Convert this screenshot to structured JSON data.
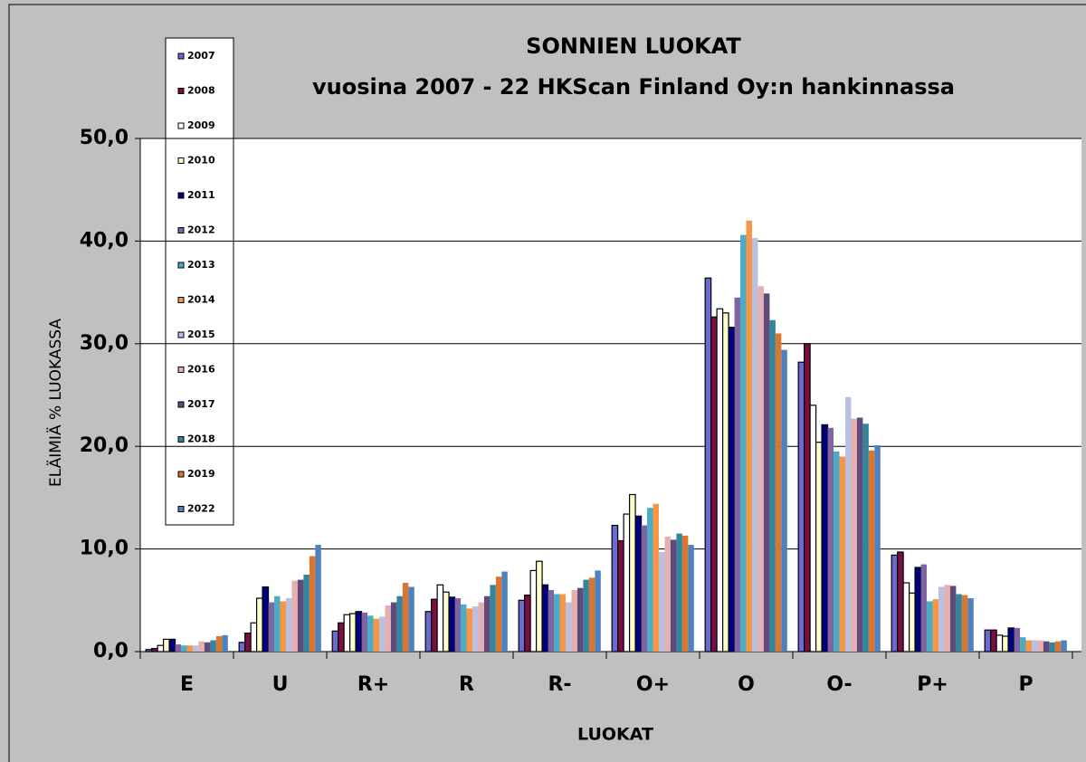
{
  "chart_data": {
    "type": "bar",
    "title": "SONNIEN LUOKAT",
    "subtitle": "vuosina 2007 - 22 HKScan Finland Oy:n hankinnassa",
    "ylabel": "ELÄIMIÄ % LUOKASSA",
    "xlabel": "LUOKAT",
    "categories": [
      "E",
      "U",
      "R+",
      "R",
      "R-",
      "O+",
      "O",
      "O-",
      "P+",
      "P"
    ],
    "ylim": [
      0,
      50
    ],
    "yticks": [
      {
        "value": 0,
        "label": "0,0"
      },
      {
        "value": 10,
        "label": "10,0"
      },
      {
        "value": 20,
        "label": "20,0"
      },
      {
        "value": 30,
        "label": "30,0"
      },
      {
        "value": 40,
        "label": "40,0"
      },
      {
        "value": 50,
        "label": "50,0"
      }
    ],
    "grid": true,
    "legend": "left",
    "series": [
      {
        "name": "2007",
        "color": "#6a6ad0",
        "values": [
          0.2,
          0.9,
          2.0,
          3.9,
          5.0,
          12.3,
          36.4,
          28.2,
          9.4,
          2.1
        ]
      },
      {
        "name": "2008",
        "color": "#7a1040",
        "values": [
          0.3,
          1.8,
          2.8,
          5.1,
          5.5,
          10.8,
          32.6,
          30.0,
          9.7,
          2.1
        ]
      },
      {
        "name": "2009",
        "color": "#ffffff",
        "values": [
          0.6,
          2.8,
          3.6,
          6.5,
          7.9,
          13.4,
          33.4,
          24.0,
          6.7,
          1.6
        ]
      },
      {
        "name": "2010",
        "color": "#ffffcc",
        "values": [
          1.2,
          5.2,
          3.7,
          5.8,
          8.8,
          15.3,
          33.0,
          20.4,
          5.7,
          1.5
        ]
      },
      {
        "name": "2011",
        "color": "#000080",
        "values": [
          1.2,
          6.3,
          3.9,
          5.3,
          6.5,
          13.2,
          31.6,
          22.1,
          8.2,
          2.3
        ]
      },
      {
        "name": "2012",
        "color": "#8064a2",
        "values": [
          0.7,
          4.8,
          3.8,
          5.2,
          6.0,
          12.3,
          34.5,
          21.8,
          8.5,
          2.3
        ]
      },
      {
        "name": "2013",
        "color": "#4bacc6",
        "values": [
          0.6,
          5.4,
          3.5,
          4.6,
          5.6,
          14.0,
          40.6,
          19.5,
          4.9,
          1.4
        ]
      },
      {
        "name": "2014",
        "color": "#f79646",
        "values": [
          0.6,
          4.9,
          3.2,
          4.2,
          5.6,
          14.4,
          42.0,
          19.0,
          5.1,
          1.1
        ]
      },
      {
        "name": "2015",
        "color": "#b9c0e0",
        "values": [
          0.6,
          5.2,
          3.4,
          4.4,
          4.8,
          9.7,
          40.3,
          24.8,
          6.3,
          1.1
        ]
      },
      {
        "name": "2016",
        "color": "#e6b0b0",
        "values": [
          1.0,
          6.9,
          4.5,
          4.8,
          6.0,
          11.2,
          35.6,
          22.7,
          6.5,
          1.1
        ]
      },
      {
        "name": "2017",
        "color": "#604a7b",
        "values": [
          0.9,
          7.0,
          4.8,
          5.4,
          6.2,
          10.9,
          34.9,
          22.8,
          6.4,
          1.0
        ]
      },
      {
        "name": "2018",
        "color": "#31859c",
        "values": [
          1.1,
          7.5,
          5.4,
          6.5,
          7.0,
          11.5,
          32.3,
          22.2,
          5.6,
          0.9
        ]
      },
      {
        "name": "2019",
        "color": "#d9762f",
        "values": [
          1.5,
          9.3,
          6.7,
          7.3,
          7.2,
          11.3,
          31.0,
          19.6,
          5.5,
          1.0
        ]
      },
      {
        "name": "2022",
        "color": "#4f81bd",
        "values": [
          1.6,
          10.4,
          6.3,
          7.8,
          7.9,
          10.4,
          29.4,
          20.1,
          5.2,
          1.1
        ]
      }
    ]
  }
}
